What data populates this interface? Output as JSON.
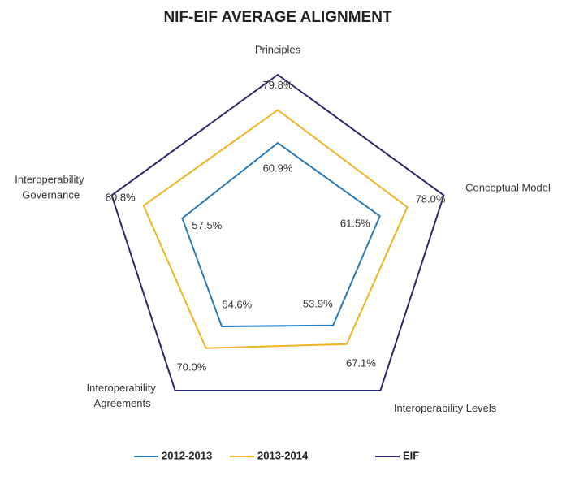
{
  "chart_data": {
    "type": "radar",
    "title": "NIF-EIF AVERAGE ALIGNMENT",
    "categories": [
      "Principles",
      "Conceptual Model",
      "Interoperability Levels",
      "Interoperability Agreements",
      "Interoperability Governance"
    ],
    "rlim": [
      0,
      100
    ],
    "series": [
      {
        "name": "2012-2013",
        "color": "#2a7ab9",
        "values": [
          60.9,
          61.5,
          53.9,
          54.6,
          57.5
        ],
        "value_labels": [
          "60.9%",
          "61.5%",
          "53.9%",
          "54.6%",
          "57.5%"
        ]
      },
      {
        "name": "2013-2014",
        "color": "#f0b323",
        "values": [
          79.8,
          78.0,
          67.1,
          70.0,
          80.8
        ],
        "value_labels": [
          "79.8%",
          "78.0%",
          "67.1%",
          "70.0%",
          "80.8%"
        ]
      },
      {
        "name": "EIF",
        "color": "#2b2a6e",
        "values": [
          100,
          100,
          100,
          100,
          100
        ]
      }
    ],
    "legend": "bottom"
  }
}
